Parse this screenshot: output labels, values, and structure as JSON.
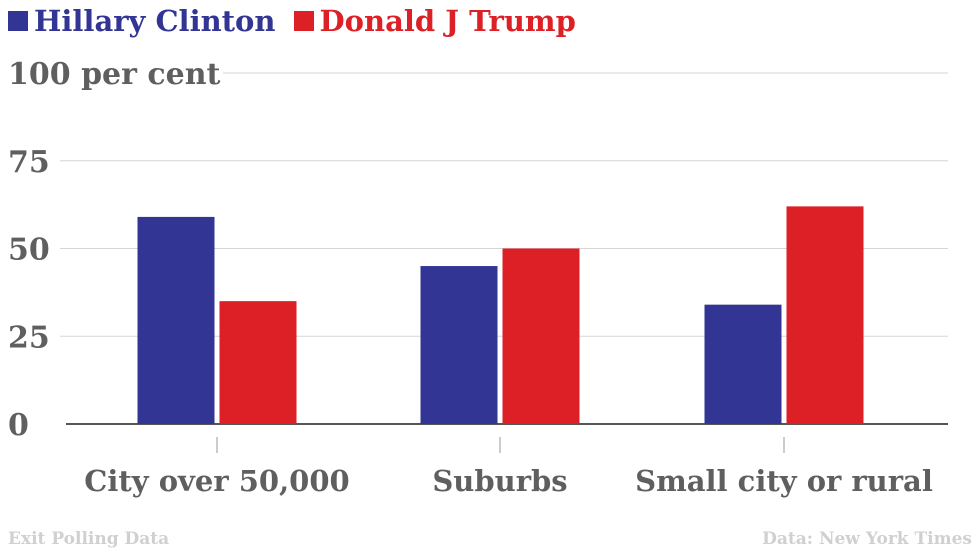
{
  "chart_data": {
    "type": "bar",
    "title": "",
    "categories": [
      "City over 50,000",
      "Suburbs",
      "Small city or rural"
    ],
    "series": [
      {
        "name": "Hillary Clinton",
        "color": "#323593",
        "values": [
          59,
          45,
          34
        ]
      },
      {
        "name": "Donald J Trump",
        "color": "#dd1f26",
        "values": [
          35,
          50,
          62
        ]
      }
    ],
    "ylim": [
      0,
      100
    ],
    "yticks": [
      0,
      25,
      50,
      75,
      100
    ],
    "ytick_labels": [
      "0",
      "25",
      "50",
      "75",
      "100 per cent"
    ],
    "xlabel": "",
    "ylabel": "",
    "grid": true,
    "legend": "top-left"
  },
  "footer": {
    "left": "Exit Polling Data",
    "right": "Data: New York Times"
  }
}
